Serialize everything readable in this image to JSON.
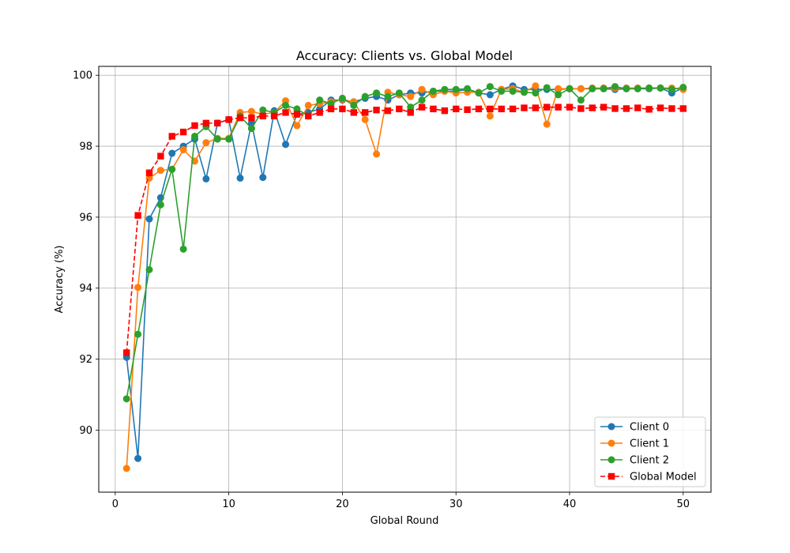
{
  "chart_data": {
    "type": "line",
    "title": "Accuracy: Clients vs. Global Model",
    "xlabel": "Global Round",
    "ylabel": "Accuracy (%)",
    "xlim": [
      -1.45,
      52.45
    ],
    "ylim": [
      88.25,
      100.25
    ],
    "xticks": [
      0,
      10,
      20,
      30,
      40,
      50
    ],
    "yticks": [
      90,
      92,
      94,
      96,
      98,
      100
    ],
    "grid": true,
    "legend_position": "lower-right",
    "x": [
      1,
      2,
      3,
      4,
      5,
      6,
      7,
      8,
      9,
      10,
      11,
      12,
      13,
      14,
      15,
      16,
      17,
      18,
      19,
      20,
      21,
      22,
      23,
      24,
      25,
      26,
      27,
      28,
      29,
      30,
      31,
      32,
      33,
      34,
      35,
      36,
      37,
      38,
      39,
      40,
      41,
      42,
      43,
      44,
      45,
      46,
      47,
      48,
      49,
      50
    ],
    "series": [
      {
        "name": "Client 0",
        "color": "#1f77b4",
        "marker": "circle",
        "linestyle": "solid",
        "values": [
          92.05,
          89.2,
          95.95,
          96.55,
          97.8,
          98.0,
          98.2,
          97.08,
          98.65,
          98.75,
          97.1,
          98.65,
          97.12,
          99.0,
          98.05,
          98.9,
          98.95,
          99.05,
          99.3,
          99.3,
          99.25,
          99.35,
          99.4,
          99.3,
          99.45,
          99.5,
          99.5,
          99.55,
          99.55,
          99.55,
          99.6,
          99.5,
          99.45,
          99.6,
          99.7,
          99.6,
          99.6,
          99.6,
          99.6,
          99.62,
          99.62,
          99.62,
          99.62,
          99.6,
          99.62,
          99.62,
          99.62,
          99.64,
          99.5,
          99.64
        ]
      },
      {
        "name": "Client 1",
        "color": "#ff7f0e",
        "marker": "circle",
        "linestyle": "solid",
        "values": [
          88.92,
          94.02,
          97.1,
          97.32,
          97.35,
          97.9,
          97.58,
          98.1,
          98.22,
          98.22,
          98.95,
          98.98,
          98.9,
          98.95,
          99.28,
          98.58,
          99.15,
          99.2,
          99.25,
          99.32,
          99.25,
          98.75,
          97.78,
          99.52,
          99.45,
          99.4,
          99.6,
          99.45,
          99.55,
          99.5,
          99.52,
          99.52,
          98.85,
          99.6,
          99.62,
          99.52,
          99.7,
          98.62,
          99.62,
          99.62,
          99.62,
          99.64,
          99.64,
          99.64,
          99.64,
          99.64,
          99.64,
          99.64,
          99.64,
          99.6
        ]
      },
      {
        "name": "Client 2",
        "color": "#2ca02c",
        "marker": "circle",
        "linestyle": "solid",
        "values": [
          90.88,
          92.7,
          94.52,
          96.35,
          97.35,
          95.1,
          98.28,
          98.55,
          98.2,
          98.2,
          98.85,
          98.5,
          99.02,
          98.95,
          99.15,
          99.05,
          98.85,
          99.3,
          99.2,
          99.35,
          99.15,
          99.4,
          99.5,
          99.4,
          99.5,
          99.1,
          99.3,
          99.55,
          99.6,
          99.6,
          99.62,
          99.5,
          99.68,
          99.55,
          99.55,
          99.52,
          99.5,
          99.65,
          99.45,
          99.62,
          99.3,
          99.62,
          99.62,
          99.68,
          99.62,
          99.62,
          99.64,
          99.64,
          99.6,
          99.66
        ]
      },
      {
        "name": "Global Model",
        "color": "#ff0000",
        "marker": "square",
        "linestyle": "dashed",
        "values": [
          92.18,
          96.05,
          97.25,
          97.72,
          98.28,
          98.4,
          98.58,
          98.65,
          98.65,
          98.75,
          98.8,
          98.8,
          98.85,
          98.85,
          98.95,
          98.9,
          98.85,
          98.95,
          99.05,
          99.05,
          98.95,
          98.95,
          99.02,
          99.0,
          99.05,
          98.95,
          99.1,
          99.05,
          99.0,
          99.05,
          99.03,
          99.05,
          99.05,
          99.05,
          99.05,
          99.08,
          99.08,
          99.1,
          99.1,
          99.1,
          99.06,
          99.08,
          99.1,
          99.06,
          99.06,
          99.08,
          99.04,
          99.08,
          99.06,
          99.06
        ]
      }
    ]
  }
}
